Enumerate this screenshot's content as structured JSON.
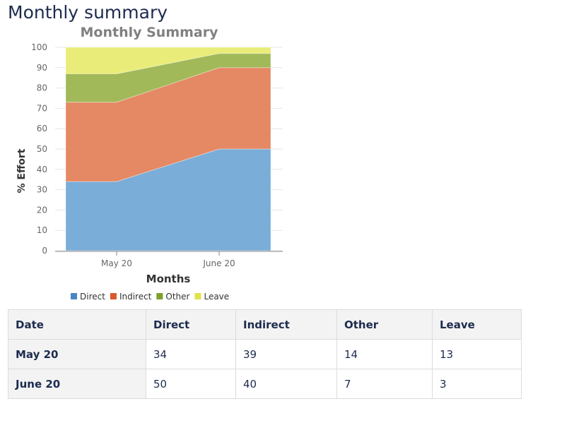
{
  "page": {
    "title": "Monthly summary"
  },
  "chart_data": {
    "type": "area",
    "stacked": true,
    "title": "Monthly Summary",
    "xlabel": "Months",
    "ylabel": "% Effort",
    "categories": [
      "May 20",
      "June 20"
    ],
    "ylim": [
      0,
      100
    ],
    "yticks": [
      0,
      10,
      20,
      30,
      40,
      50,
      60,
      70,
      80,
      90,
      100
    ],
    "grid": true,
    "legend_position": "bottom-left",
    "series": [
      {
        "name": "Direct",
        "values": [
          34,
          50
        ],
        "color": "#7aadd8",
        "legend_color": "#4a86c5"
      },
      {
        "name": "Indirect",
        "values": [
          39,
          40
        ],
        "color": "#e58864",
        "legend_color": "#d9582c"
      },
      {
        "name": "Other",
        "values": [
          14,
          7
        ],
        "color": "#a2b95a",
        "legend_color": "#7f9f2b"
      },
      {
        "name": "Leave",
        "values": [
          13,
          3
        ],
        "color": "#e9ec78",
        "legend_color": "#dfe24a"
      }
    ]
  },
  "table": {
    "headers": [
      "Date",
      "Direct",
      "Indirect",
      "Other",
      "Leave"
    ],
    "rows": [
      [
        "May 20",
        "34",
        "39",
        "14",
        "13"
      ],
      [
        "June 20",
        "50",
        "40",
        "7",
        "3"
      ]
    ]
  }
}
